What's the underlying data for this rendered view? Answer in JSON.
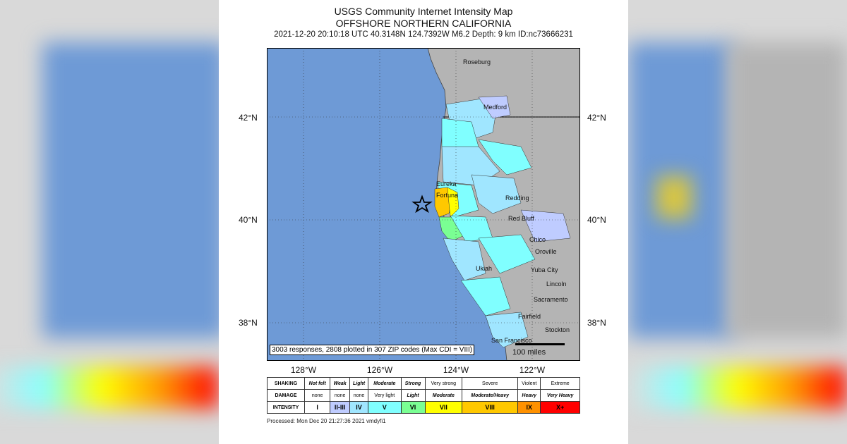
{
  "title": {
    "line1": "USGS Community Internet Intensity Map",
    "line2": "OFFSHORE NORTHERN CALIFORNIA",
    "line3": "2021-12-20 20:10:18 UTC 40.3148N 124.7392W M6.2 Depth: 9 km ID:nc73666231"
  },
  "map": {
    "lat_labels": [
      "42°N",
      "40°N",
      "38°N"
    ],
    "lon_labels": [
      "128°W",
      "126°W",
      "124°W",
      "122°W"
    ],
    "cities": [
      "Roseburg",
      "Medford",
      "Eureka",
      "Fortuna",
      "Redding",
      "Red Bluff",
      "Chico",
      "Oroville",
      "Ukiah",
      "Yuba City",
      "Lincoln",
      "Sacramento",
      "Fairfield",
      "Stockton",
      "San Francisco"
    ],
    "responses": "3003 responses, 2808 plotted in 307 ZIP codes (Max CDI = VIII)",
    "scale": "100 miles",
    "epicenter_marker": "star",
    "colors": {
      "ocean": "#6e9ad6",
      "land": "#b4b4b4",
      "I": "#ffffff",
      "II-III": "#bfccff",
      "IV": "#a0e6ff",
      "V": "#80ffff",
      "VI": "#7aff93",
      "VII": "#ffff00",
      "VIII": "#ffc800",
      "IX": "#ff9100",
      "X+": "#ff0000"
    }
  },
  "legend": {
    "shaking_label": "SHAKING",
    "damage_label": "DAMAGE",
    "intensity_label": "INTENSITY",
    "shaking": [
      "Not felt",
      "Weak",
      "Light",
      "Moderate",
      "Strong",
      "Very strong",
      "Severe",
      "Violent",
      "Extreme"
    ],
    "damage": [
      "none",
      "none",
      "none",
      "Very light",
      "Light",
      "Moderate",
      "Moderate/Heavy",
      "Heavy",
      "Very Heavy"
    ],
    "intensity": [
      "I",
      "II-III",
      "IV",
      "V",
      "VI",
      "VII",
      "VIII",
      "IX",
      "X+"
    ],
    "intensity_colors": [
      "#ffffff",
      "#bfccff",
      "#a0e6ff",
      "#80ffff",
      "#7aff93",
      "#ffff00",
      "#ffc800",
      "#ff9100",
      "#ff0000"
    ]
  },
  "processed": "Processed: Mon Dec 20 21:27:36 2021 vmdyfi1"
}
